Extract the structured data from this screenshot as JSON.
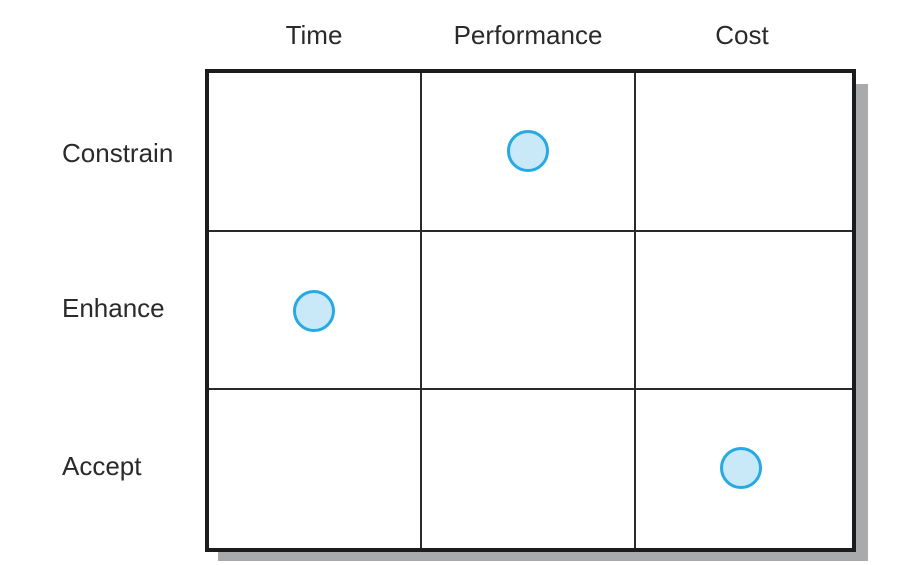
{
  "columns": [
    "Time",
    "Performance",
    "Cost"
  ],
  "rows": [
    "Constrain",
    "Enhance",
    "Accept"
  ],
  "selections": [
    {
      "row": "Constrain",
      "column": "Performance"
    },
    {
      "row": "Enhance",
      "column": "Time"
    },
    {
      "row": "Accept",
      "column": "Cost"
    }
  ],
  "colors": {
    "marker_fill": "#c9e9f8",
    "marker_stroke": "#27a9e1",
    "grid_line": "#1c1c1c",
    "shadow": "#a8aaac"
  }
}
